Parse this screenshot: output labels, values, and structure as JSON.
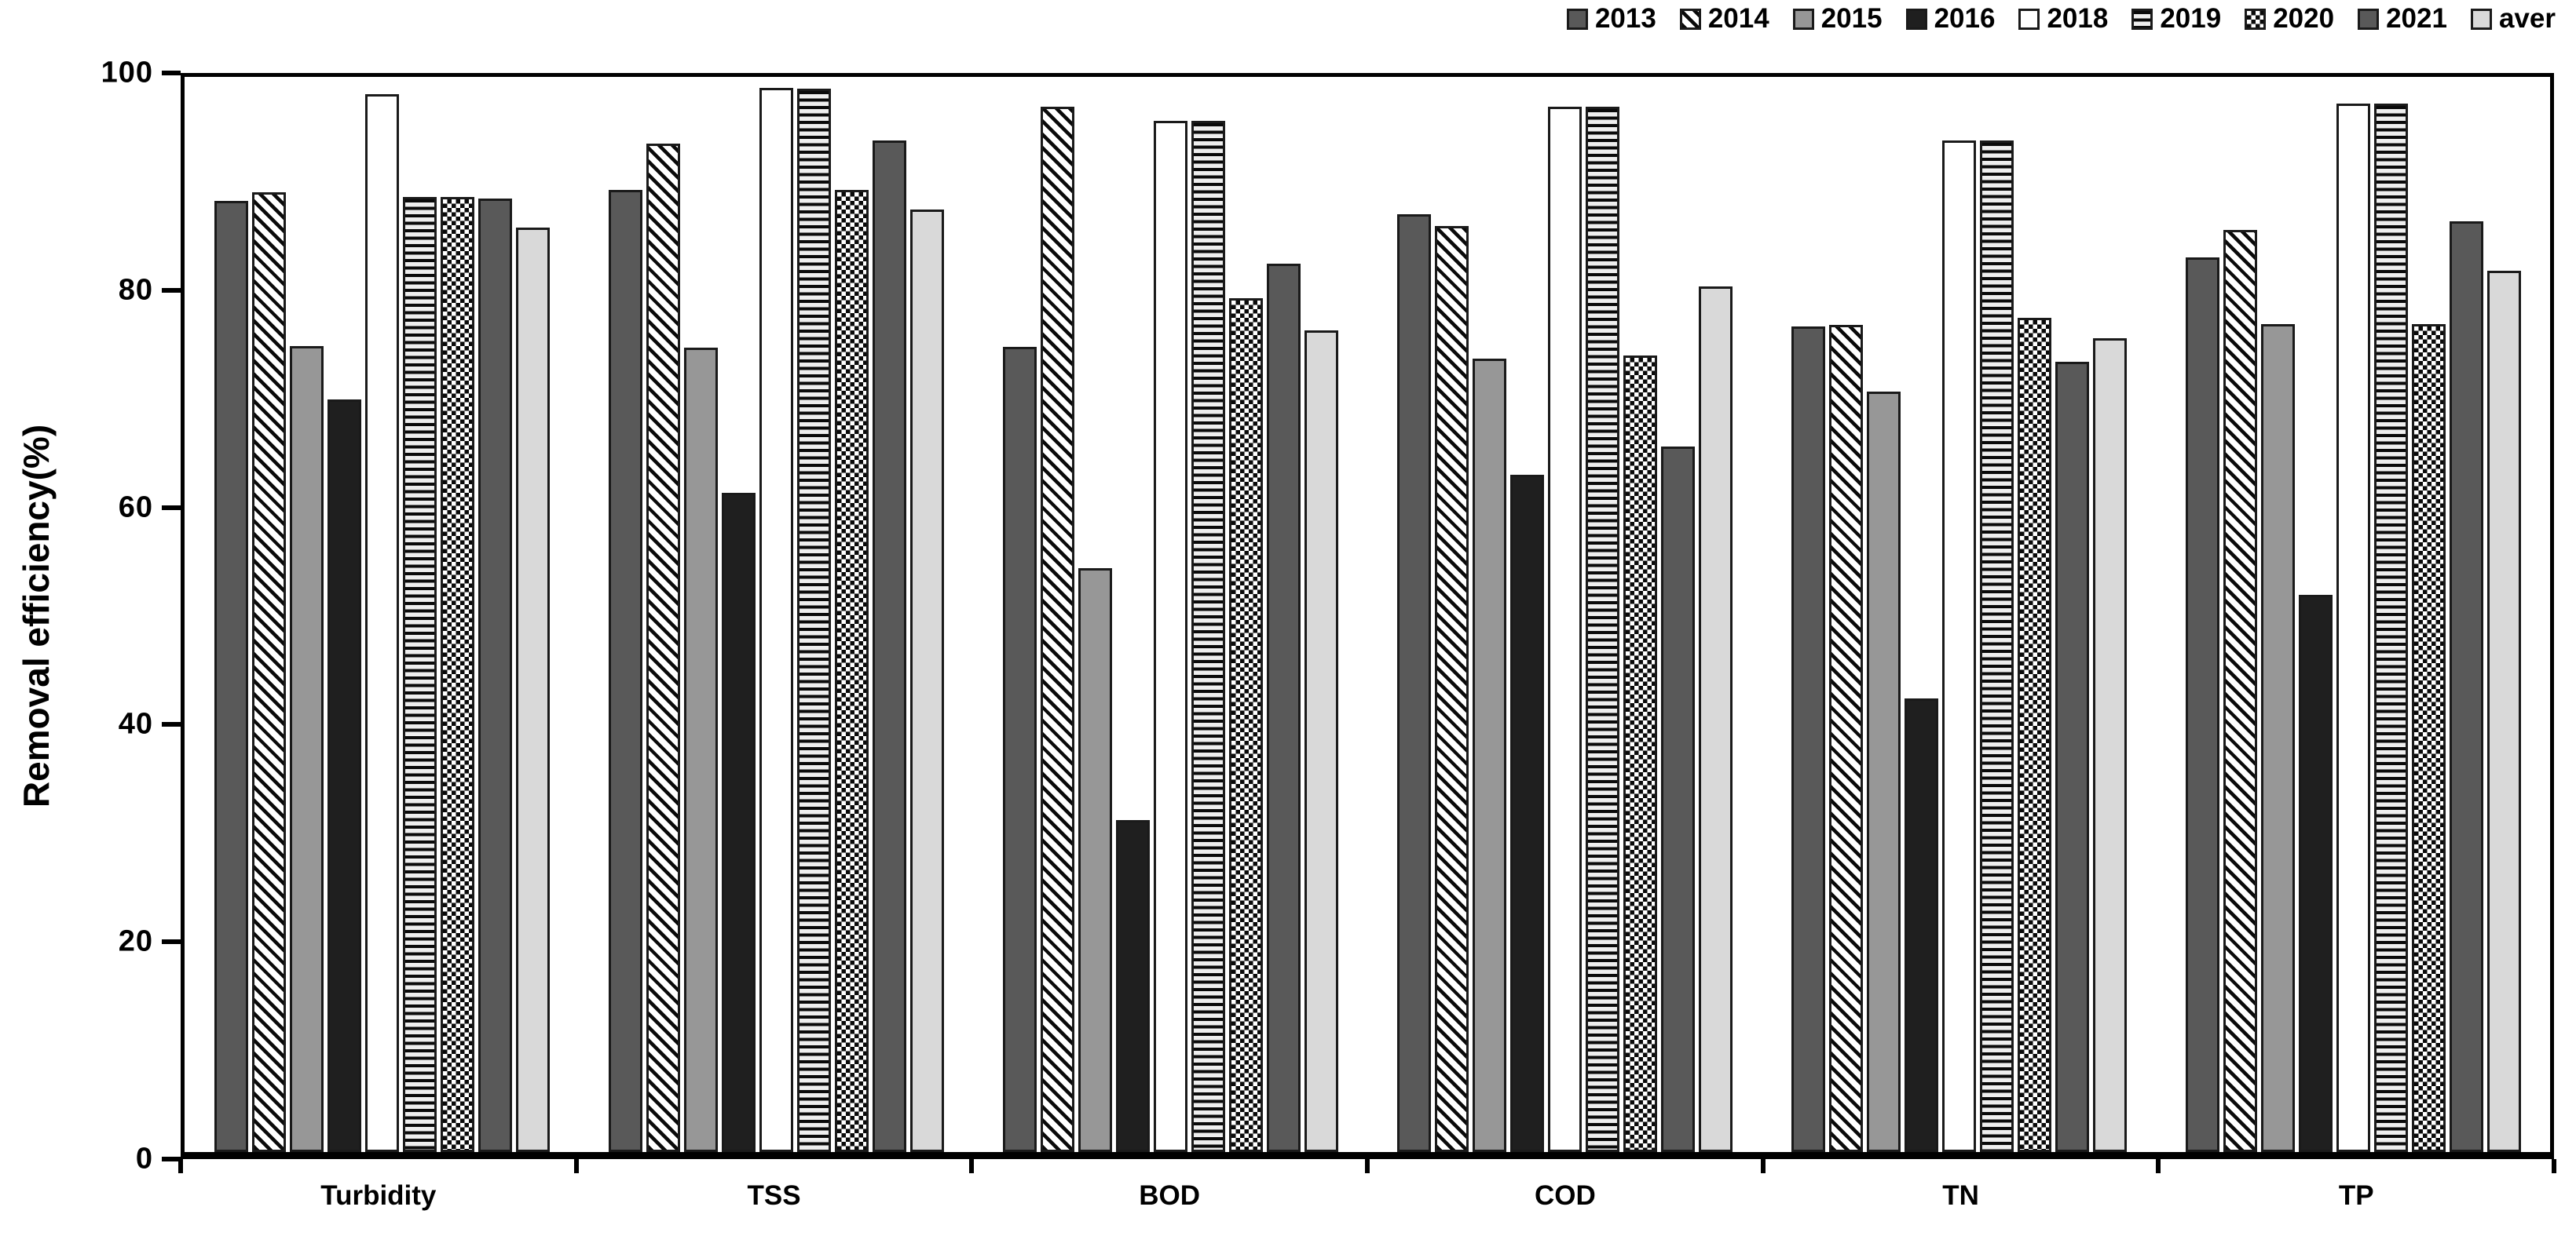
{
  "figure": {
    "background": "#ffffff"
  },
  "chart_data": {
    "type": "bar",
    "title": "",
    "xlabel": "",
    "ylabel": "Removal efficiency(%)",
    "ylim": [
      0,
      100
    ],
    "yticks": [
      0,
      20,
      40,
      60,
      80,
      100
    ],
    "grid": false,
    "legend_position": "top-right",
    "frame": true,
    "bar_outline_color": "#1a1a1a",
    "categories": [
      "Turbidity",
      "TSS",
      "BOD",
      "COD",
      "TN",
      "TP"
    ],
    "series": [
      {
        "name": "2013",
        "pattern": "solid-dark-gray",
        "color": "#595959",
        "values": [
          88.5,
          89.5,
          74.9,
          87.2,
          76.8,
          83.2
        ]
      },
      {
        "name": "2014",
        "pattern": "diagonal-hatch",
        "color": "#ffffff",
        "values": [
          89.3,
          93.8,
          97.2,
          86.1,
          76.9,
          85.8
        ]
      },
      {
        "name": "2015",
        "pattern": "solid-medium-gray",
        "color": "#979797",
        "values": [
          75.0,
          74.8,
          54.3,
          73.8,
          70.7,
          77.0
        ]
      },
      {
        "name": "2016",
        "pattern": "solid-black",
        "color": "#1f1f1f",
        "values": [
          70.0,
          61.3,
          30.9,
          63.0,
          42.2,
          51.8
        ]
      },
      {
        "name": "2018",
        "pattern": "white-outline",
        "color": "#ffffff",
        "values": [
          98.4,
          99.0,
          95.9,
          97.2,
          94.1,
          97.5
        ]
      },
      {
        "name": "2019",
        "pattern": "horizontal-stripes",
        "color": "#ffffff",
        "values": [
          88.8,
          98.9,
          95.9,
          97.2,
          94.1,
          97.5
        ]
      },
      {
        "name": "2020",
        "pattern": "checkerboard",
        "color": "#ffffff",
        "values": [
          88.8,
          89.5,
          79.4,
          74.1,
          77.6,
          77.0
        ]
      },
      {
        "name": "2021",
        "pattern": "solid-dark-gray",
        "color": "#595959",
        "values": [
          88.7,
          94.1,
          82.6,
          65.6,
          73.5,
          86.6
        ]
      },
      {
        "name": "aver",
        "pattern": "solid-light-gray",
        "color": "#d9d9d9",
        "values": [
          86.0,
          87.7,
          76.4,
          80.5,
          75.7,
          82.0
        ]
      }
    ]
  }
}
